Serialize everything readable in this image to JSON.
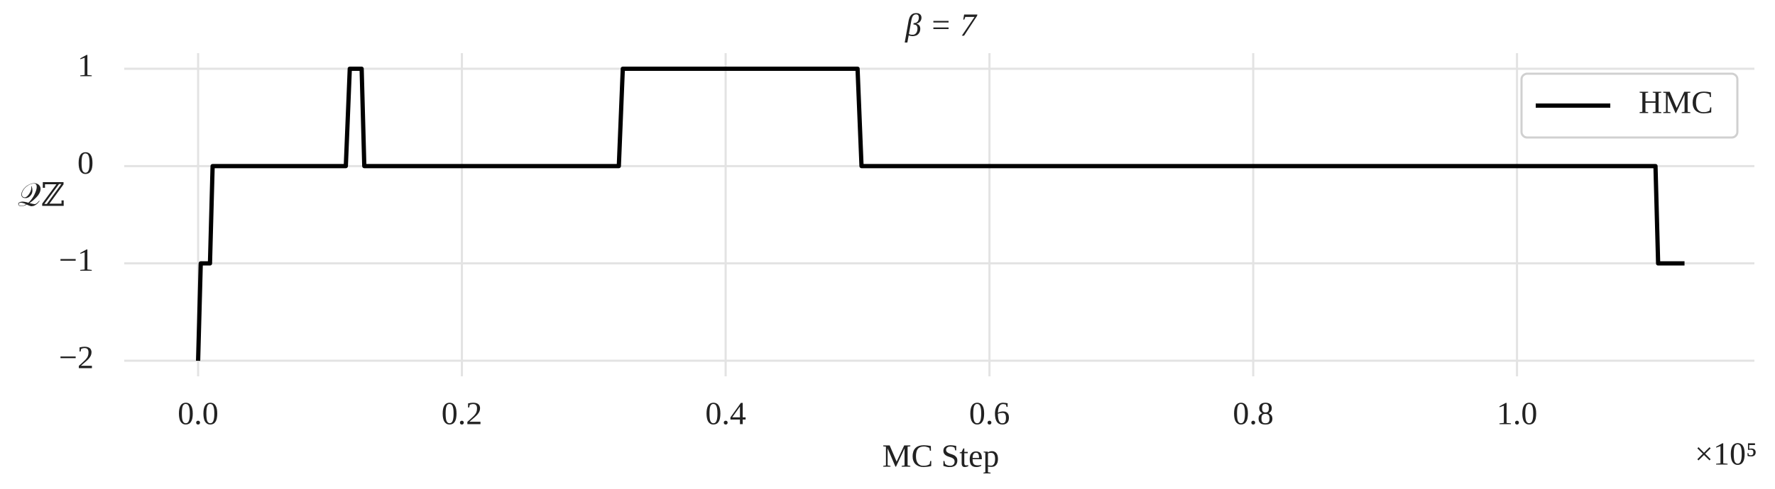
{
  "chart_data": {
    "type": "line",
    "title": "β = 7",
    "xlabel": "MC Step",
    "ylabel": "𝒬ℤ",
    "x_offset_label": "×10⁵",
    "x": [
      0.0,
      0.002,
      0.009,
      0.011,
      0.112,
      0.115,
      0.124,
      0.126,
      0.319,
      0.322,
      0.5,
      0.503,
      1.105,
      1.107,
      1.127
    ],
    "series": [
      {
        "name": "HMC",
        "color": "#000000",
        "values": [
          -2,
          -1,
          -1,
          0,
          0,
          1,
          1,
          0,
          0,
          1,
          1,
          0,
          0,
          -1,
          -1
        ]
      }
    ],
    "xlim": [
      -0.056,
      1.18
    ],
    "xticks": [
      {
        "value": 0,
        "label": "0.0"
      },
      0.2,
      0.4,
      0.6,
      0.8,
      {
        "value": 1,
        "label": "1.0"
      }
    ],
    "ylim": [
      -2.16,
      1.16
    ],
    "yticks": [
      {
        "value": -2,
        "label": "−2"
      },
      {
        "value": -1,
        "label": "−1"
      },
      0,
      1
    ],
    "grid": true,
    "legend": "upper right"
  }
}
